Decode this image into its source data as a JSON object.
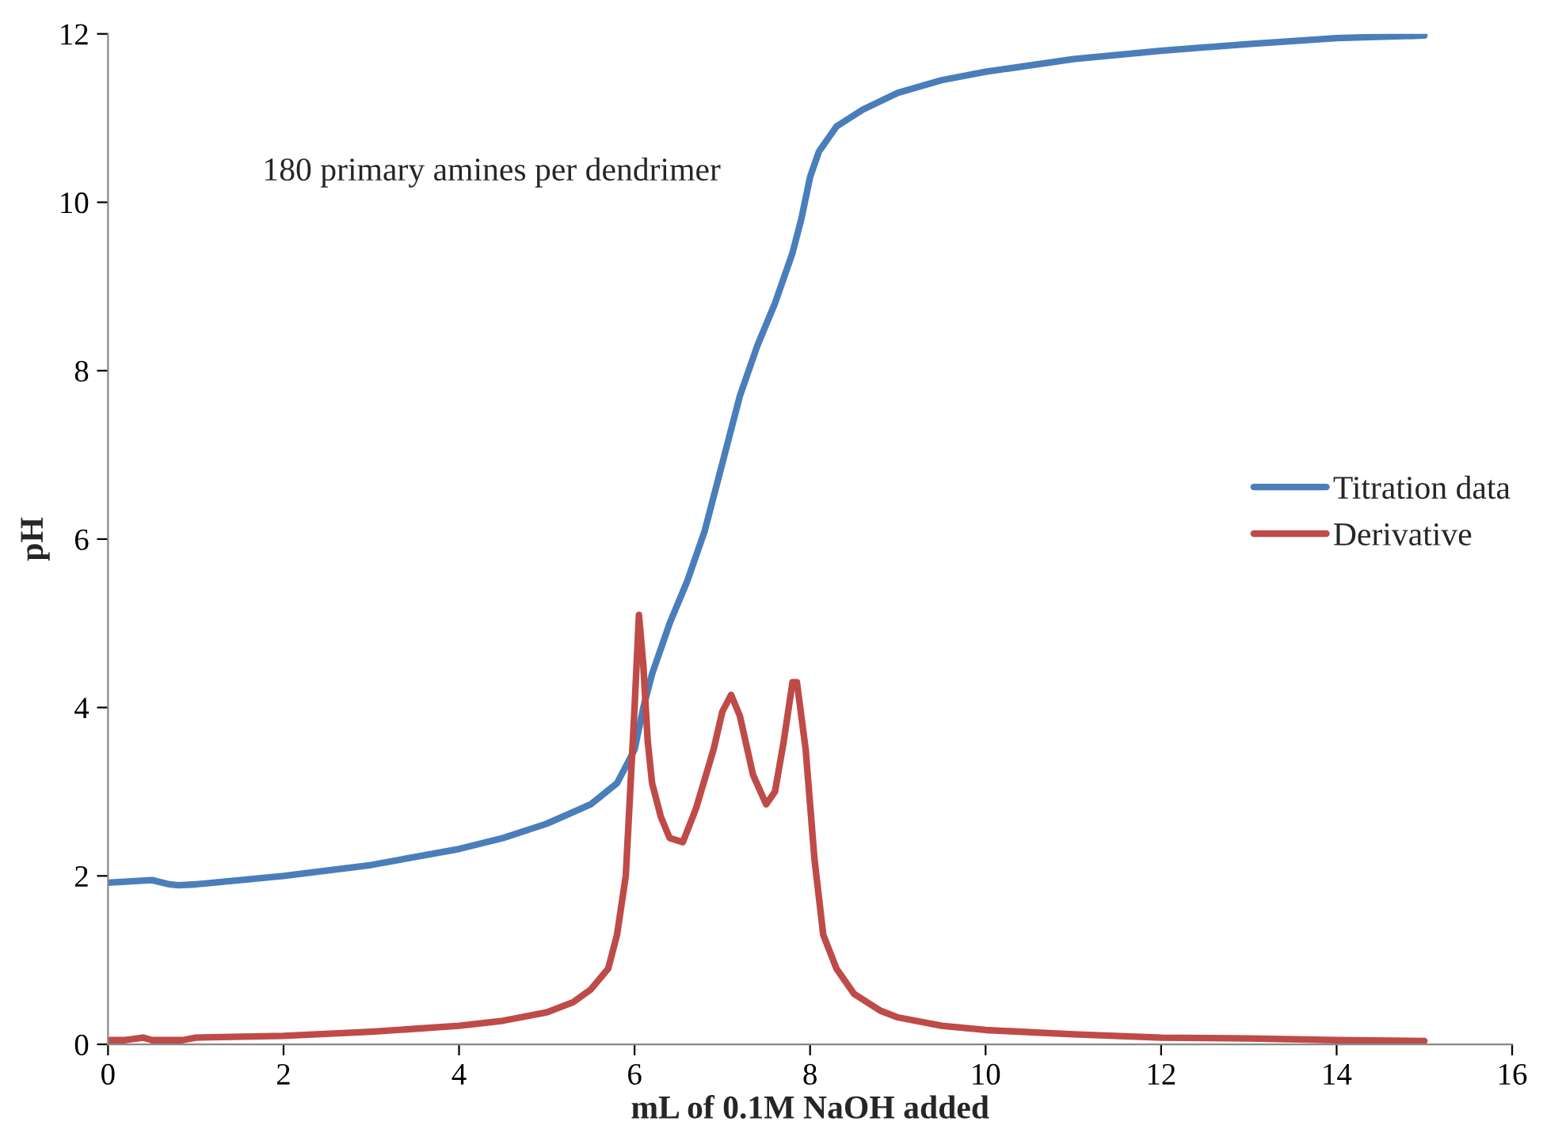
{
  "chart_data": {
    "type": "line",
    "xlabel": "mL of 0.1M NaOH added",
    "ylabel": "pH",
    "xlim": [
      0,
      16
    ],
    "xticks": [
      0,
      2,
      4,
      6,
      8,
      10,
      12,
      14,
      16
    ],
    "ylim": [
      0,
      12
    ],
    "yticks": [
      0,
      2,
      4,
      6,
      8,
      10,
      12
    ],
    "grid": false,
    "legend": "right",
    "marker": "none",
    "line_style": "solid",
    "annotations": [
      "180 primary amines per dendrimer"
    ],
    "series": [
      {
        "name": "Titration data",
        "color": "#4a7ebb",
        "x": [
          0,
          0.5,
          0.7,
          0.8,
          1,
          2,
          3,
          4,
          4.5,
          5,
          5.5,
          5.8,
          6.0,
          6.1,
          6.2,
          6.4,
          6.6,
          6.8,
          7.0,
          7.2,
          7.4,
          7.6,
          7.8,
          7.9,
          8.0,
          8.1,
          8.3,
          8.6,
          9,
          9.5,
          10,
          11,
          12,
          13,
          14,
          15
        ],
        "values": [
          1.92,
          1.95,
          1.9,
          1.89,
          1.9,
          2.0,
          2.13,
          2.32,
          2.45,
          2.62,
          2.85,
          3.1,
          3.5,
          4.0,
          4.4,
          5.0,
          5.5,
          6.1,
          6.9,
          7.7,
          8.3,
          8.8,
          9.4,
          9.8,
          10.3,
          10.6,
          10.9,
          11.1,
          11.3,
          11.45,
          11.55,
          11.7,
          11.8,
          11.88,
          11.95,
          11.98
        ]
      },
      {
        "name": "Derivative",
        "color": "#be4b48",
        "x": [
          0,
          0.2,
          0.4,
          0.5,
          0.65,
          0.85,
          1,
          2,
          3,
          4,
          4.5,
          5,
          5.3,
          5.5,
          5.7,
          5.8,
          5.9,
          5.95,
          6.0,
          6.05,
          6.1,
          6.15,
          6.2,
          6.3,
          6.4,
          6.55,
          6.7,
          6.9,
          7.0,
          7.1,
          7.2,
          7.35,
          7.5,
          7.6,
          7.7,
          7.8,
          7.85,
          7.95,
          8.05,
          8.15,
          8.3,
          8.5,
          8.8,
          9,
          9.5,
          10,
          11,
          12,
          13,
          14,
          15
        ],
        "values": [
          0.05,
          0.05,
          0.08,
          0.05,
          null,
          0.05,
          0.08,
          0.1,
          0.15,
          0.22,
          0.28,
          0.38,
          0.5,
          0.65,
          0.9,
          1.3,
          2.0,
          3.0,
          4.0,
          5.1,
          4.5,
          3.6,
          3.1,
          2.7,
          2.45,
          2.4,
          2.8,
          3.5,
          3.95,
          4.15,
          3.9,
          3.2,
          2.85,
          3.0,
          3.6,
          4.3,
          4.3,
          3.5,
          2.2,
          1.3,
          0.9,
          0.6,
          0.4,
          0.32,
          0.22,
          0.17,
          0.12,
          0.08,
          0.07,
          0.05,
          0.04
        ]
      }
    ]
  }
}
